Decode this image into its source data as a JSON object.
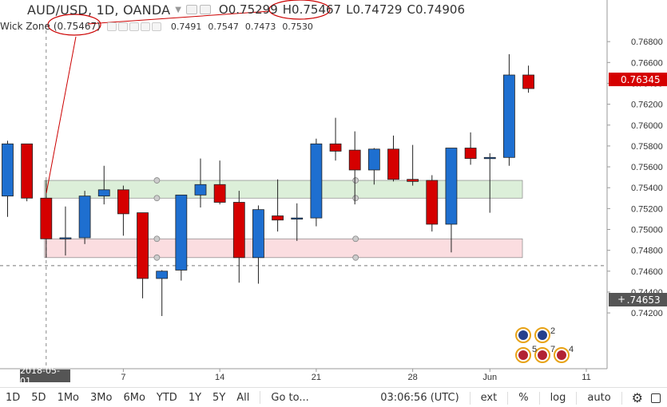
{
  "header": {
    "symbol": "AUD/USD, 1D, OANDA",
    "open_label": "O",
    "open": "0.75299",
    "high_label": "H",
    "high": "0.75467",
    "low_label": "L",
    "low": "0.74729",
    "close_label": "C",
    "close": "0.74906"
  },
  "indicator": {
    "name": "Wick Zone",
    "param": "(0.75467)",
    "values": [
      "0.7491",
      "0.7547",
      "0.7473",
      "0.7530"
    ]
  },
  "price_axis": {
    "labels": [
      "0.76800",
      "0.76600",
      "0.76400",
      "0.76200",
      "0.76000",
      "0.75800",
      "0.75600",
      "0.75400",
      "0.75200",
      "0.75000",
      "0.74800",
      "0.74600",
      "0.74400",
      "0.74200"
    ],
    "last_price": "0.76345",
    "crosshair_price": "0.74653",
    "plus": "+"
  },
  "time_axis": {
    "labels": [
      "7",
      "14",
      "21",
      "28",
      "Jun",
      "11"
    ],
    "crosshair_date": "2018-05-01"
  },
  "events": {
    "counts": [
      "2",
      "5",
      "7",
      "4"
    ]
  },
  "toolbar": {
    "ranges": [
      "1D",
      "5D",
      "1Mo",
      "3Mo",
      "6Mo",
      "YTD",
      "1Y",
      "5Y",
      "All"
    ],
    "goto": "Go to...",
    "clock": "03:06:56 (UTC)",
    "ext": "ext",
    "percent": "%",
    "log": "log",
    "auto": "auto"
  },
  "colors": {
    "up": "#1e6fd0",
    "down": "#d50000",
    "green_zone": "#dcefd9",
    "red_zone": "#fbdde0",
    "annotation": "#cc0000"
  },
  "chart_data": {
    "type": "candlestick",
    "ylim": [
      0.7415,
      0.7695
    ],
    "candles": [
      {
        "o": 0.7532,
        "h": 0.7585,
        "l": 0.7512,
        "c": 0.7582
      },
      {
        "o": 0.7582,
        "h": 0.7582,
        "l": 0.7527,
        "c": 0.753
      },
      {
        "o": 0.753,
        "h": 0.7547,
        "l": 0.7473,
        "c": 0.7491
      },
      {
        "o": 0.7491,
        "h": 0.7522,
        "l": 0.7475,
        "c": 0.7492
      },
      {
        "o": 0.7492,
        "h": 0.7537,
        "l": 0.7486,
        "c": 0.7532
      },
      {
        "o": 0.7532,
        "h": 0.7561,
        "l": 0.7524,
        "c": 0.7538
      },
      {
        "o": 0.7538,
        "h": 0.7542,
        "l": 0.7494,
        "c": 0.7515
      },
      {
        "o": 0.7516,
        "h": 0.7516,
        "l": 0.7434,
        "c": 0.7453
      },
      {
        "o": 0.7453,
        "h": 0.7461,
        "l": 0.7417,
        "c": 0.746
      },
      {
        "o": 0.7461,
        "h": 0.7533,
        "l": 0.7451,
        "c": 0.7533
      },
      {
        "o": 0.7533,
        "h": 0.7568,
        "l": 0.7521,
        "c": 0.7543
      },
      {
        "o": 0.7543,
        "h": 0.7566,
        "l": 0.7524,
        "c": 0.7526
      },
      {
        "o": 0.7526,
        "h": 0.7537,
        "l": 0.7449,
        "c": 0.7473
      },
      {
        "o": 0.7473,
        "h": 0.7523,
        "l": 0.7448,
        "c": 0.7519
      },
      {
        "o": 0.7513,
        "h": 0.7548,
        "l": 0.7498,
        "c": 0.7509
      },
      {
        "o": 0.751,
        "h": 0.7525,
        "l": 0.7489,
        "c": 0.7511
      },
      {
        "o": 0.7511,
        "h": 0.7587,
        "l": 0.7503,
        "c": 0.7582
      },
      {
        "o": 0.7582,
        "h": 0.7607,
        "l": 0.7566,
        "c": 0.7575
      },
      {
        "o": 0.7576,
        "h": 0.7594,
        "l": 0.7524,
        "c": 0.7557
      },
      {
        "o": 0.7557,
        "h": 0.7578,
        "l": 0.7543,
        "c": 0.7577
      },
      {
        "o": 0.7577,
        "h": 0.759,
        "l": 0.7546,
        "c": 0.7548
      },
      {
        "o": 0.7548,
        "h": 0.7581,
        "l": 0.7542,
        "c": 0.7546
      },
      {
        "o": 0.7547,
        "h": 0.7552,
        "l": 0.7498,
        "c": 0.7505
      },
      {
        "o": 0.7505,
        "h": 0.7578,
        "l": 0.7478,
        "c": 0.7578
      },
      {
        "o": 0.7578,
        "h": 0.7593,
        "l": 0.7562,
        "c": 0.7568
      },
      {
        "o": 0.7569,
        "h": 0.7573,
        "l": 0.7516,
        "c": 0.7569
      },
      {
        "o": 0.7569,
        "h": 0.7668,
        "l": 0.7561,
        "c": 0.7648
      },
      {
        "o": 0.7648,
        "h": 0.7657,
        "l": 0.7631,
        "c": 0.7635
      }
    ],
    "zones": [
      {
        "from": 0.753,
        "to": 0.7547,
        "color": "green"
      },
      {
        "from": 0.7473,
        "to": 0.7491,
        "color": "red"
      }
    ]
  }
}
